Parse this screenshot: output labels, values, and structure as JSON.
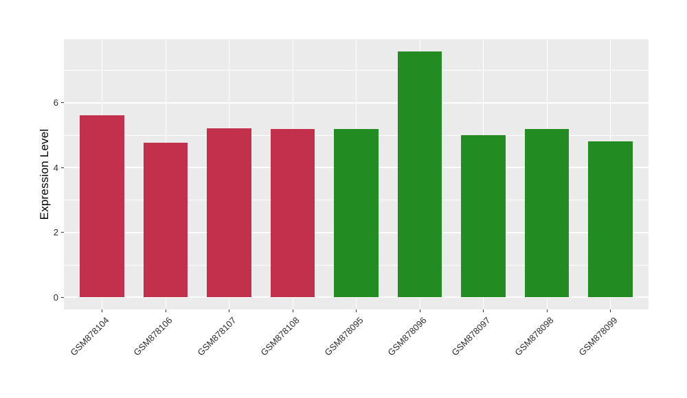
{
  "figure": {
    "background": "#FFFFFF"
  },
  "chart_data": {
    "type": "bar",
    "title": "",
    "xlabel": "",
    "ylabel": "Expression Level",
    "categories": [
      "GSM878104",
      "GSM878106",
      "GSM878107",
      "GSM878108",
      "GSM878095",
      "GSM878096",
      "GSM878097",
      "GSM878098",
      "GSM878099"
    ],
    "values": [
      5.62,
      4.76,
      5.21,
      5.19,
      5.2,
      7.58,
      5.01,
      5.19,
      4.82
    ],
    "groups": [
      "group1",
      "group1",
      "group1",
      "group1",
      "group2",
      "group2",
      "group2",
      "group2",
      "group2"
    ],
    "group_colors": {
      "group1": "#C3304C",
      "group2": "#228B22"
    },
    "y_ticks": [
      0,
      2,
      4,
      6
    ],
    "y_minor_ticks": [
      1,
      3,
      5,
      7
    ],
    "ylim": [
      -0.37,
      7.96
    ],
    "bar_rel_width": 0.7,
    "x_label_angle_deg": -45,
    "panel_bg": "#EBEBEB",
    "grid_color": "#FFFFFF",
    "tick_color": "#333333",
    "tick_label_color": "#2B2B2B",
    "axis_title_color": "#000000",
    "legend": "none",
    "grid": "on"
  }
}
